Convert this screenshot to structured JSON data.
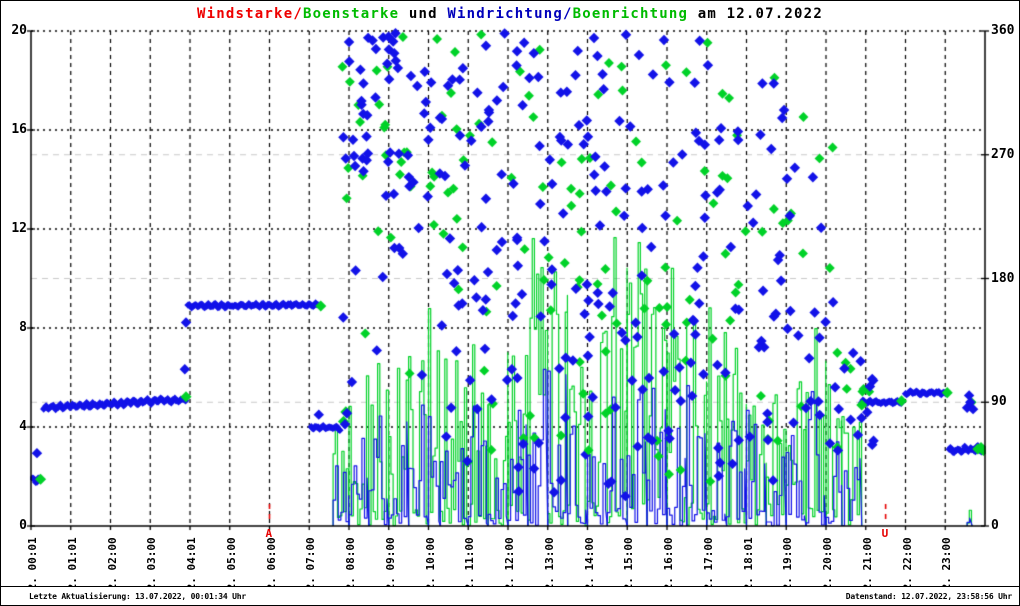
{
  "title": {
    "parts": [
      {
        "text": "Windstarke/",
        "color": "#ee0000"
      },
      {
        "text": "Boenstarke",
        "color": "#00bb00"
      },
      {
        "text": " und ",
        "color": "#000000"
      },
      {
        "text": "Windrichtung/",
        "color": "#0000bb"
      },
      {
        "text": "Boenrichtung",
        "color": "#00bb00"
      },
      {
        "text": " am 12.07.2022",
        "color": "#000000"
      }
    ]
  },
  "footer": {
    "left": "Letzte Aktualisierung: 13.07.2022, 00:01:34 Uhr",
    "right": "Datenstand: 12.07.2022, 23:58:56 Uhr"
  },
  "colors": {
    "wind_blue": "#1212e8",
    "gust_green": "#00d228",
    "grid_major": "#000000",
    "grid_right": "#c9c9c9",
    "marker_red": "#e60000",
    "axis": "#000000"
  },
  "chart_data": {
    "type": "line+scatter",
    "title": "Windstarke/Boenstarke und Windrichtung/Boenrichtung am 12.07.2022",
    "x_axis": {
      "range_hours": [
        0,
        24
      ],
      "tick_labels": [
        "12. 00:01",
        "12. 01:01",
        "12. 02:00",
        "12. 03:00",
        "12. 04:01",
        "12. 05:00",
        "12. 06:00",
        "12. 07:00",
        "12. 08:00",
        "12. 09:00",
        "12. 10:00",
        "12. 11:00",
        "12. 12:00",
        "12. 13:00",
        "12. 14:00",
        "12. 15:00",
        "12. 16:00",
        "12. 17:00",
        "12. 18:01",
        "12. 19:00",
        "12. 20:00",
        "12. 21:00",
        "12. 22:00",
        "12. 23:00"
      ],
      "gridlines": "dashed-vertical-per-hour"
    },
    "y_left": {
      "ticks": [
        0,
        4,
        8,
        12,
        16,
        20
      ],
      "range": [
        0,
        20
      ],
      "measures": "Windstarke / Boenstarke"
    },
    "y_right": {
      "ticks": [
        0,
        90,
        180,
        270,
        360
      ],
      "range": [
        0,
        360
      ],
      "measures": "Windrichtung / Boenrichtung (Grad)"
    },
    "series": [
      {
        "name": "Windstarke",
        "type": "step-line",
        "color": "#1212e8",
        "axis": "left"
      },
      {
        "name": "Boenstarke",
        "type": "step-line",
        "color": "#00d228",
        "axis": "left"
      },
      {
        "name": "Windrichtung",
        "type": "scatter-diamond",
        "color": "#1212e8",
        "axis": "right"
      },
      {
        "name": "Boenrichtung",
        "type": "scatter-diamond",
        "color": "#00d228",
        "axis": "right"
      }
    ],
    "wind_direction_segments": [
      {
        "t0": 0.03,
        "t1": 0.28,
        "deg0": 33,
        "deg1": 34,
        "jitter": 2.0
      },
      {
        "t0": 0.32,
        "t1": 3.9,
        "deg0": 86,
        "deg1": 92,
        "jitter": 2.0
      },
      {
        "t0": 3.95,
        "t1": 7.28,
        "deg0": 160,
        "deg1": 161,
        "jitter": 1.5
      },
      {
        "t0": 7.05,
        "t1": 7.8,
        "deg0": 72,
        "deg1": 71,
        "jitter": 1.5
      },
      {
        "t0": 20.9,
        "t1": 21.9,
        "deg0": 90,
        "deg1": 90,
        "jitter": 1.5
      },
      {
        "t0": 22.0,
        "t1": 23.05,
        "deg0": 97,
        "deg1": 97,
        "jitter": 1.5
      },
      {
        "t0": 23.1,
        "t1": 23.98,
        "deg0": 55,
        "deg1": 56,
        "jitter": 2.5
      }
    ],
    "wind_direction_points": [
      [
        0.15,
        53
      ],
      [
        3.87,
        114
      ],
      [
        3.9,
        148
      ],
      [
        7.24,
        81
      ],
      [
        7.9,
        74
      ],
      [
        7.95,
        82
      ],
      [
        20.1,
        60
      ],
      [
        20.3,
        55
      ],
      [
        23.55,
        86
      ],
      [
        23.6,
        95
      ],
      [
        23.63,
        90
      ],
      [
        23.7,
        85
      ]
    ],
    "gust_direction_points": [
      [
        0.24,
        34
      ],
      [
        3.9,
        94
      ],
      [
        7.29,
        160
      ],
      [
        7.86,
        76
      ],
      [
        7.92,
        83
      ],
      [
        20.9,
        88
      ],
      [
        21.9,
        91
      ],
      [
        23.05,
        97
      ],
      [
        23.65,
        90
      ],
      [
        23.82,
        56
      ],
      [
        23.9,
        57
      ],
      [
        23.96,
        55
      ]
    ],
    "direction_scatter_windows": [
      [
        7.8,
        9.0,
        250,
        360,
        26,
        12
      ],
      [
        7.8,
        9.0,
        100,
        250,
        6,
        3
      ],
      [
        9.0,
        10.5,
        230,
        360,
        28,
        12
      ],
      [
        9.0,
        10.5,
        60,
        230,
        8,
        4
      ],
      [
        10.5,
        12.0,
        150,
        360,
        30,
        14
      ],
      [
        10.5,
        12.0,
        40,
        150,
        8,
        4
      ],
      [
        12.0,
        14.0,
        110,
        360,
        40,
        20
      ],
      [
        12.0,
        14.0,
        20,
        110,
        10,
        5
      ],
      [
        14.0,
        16.0,
        100,
        360,
        40,
        20
      ],
      [
        14.0,
        16.0,
        20,
        100,
        10,
        5
      ],
      [
        16.0,
        17.5,
        100,
        360,
        28,
        14
      ],
      [
        16.0,
        17.5,
        30,
        100,
        8,
        3
      ],
      [
        17.5,
        19.0,
        80,
        330,
        24,
        12
      ],
      [
        17.5,
        19.0,
        30,
        80,
        6,
        3
      ],
      [
        19.0,
        20.2,
        60,
        300,
        18,
        8
      ],
      [
        20.2,
        21.2,
        55,
        130,
        14,
        8
      ]
    ],
    "speed_envelope_windows": [
      [
        7.6,
        8.0,
        5.5,
        2.5
      ],
      [
        8.0,
        8.5,
        7.3,
        4.5
      ],
      [
        8.5,
        9.0,
        7.5,
        5.0
      ],
      [
        9.0,
        9.5,
        7.0,
        5.0
      ],
      [
        9.5,
        10.0,
        7.4,
        5.2
      ],
      [
        10.0,
        10.3,
        9.6,
        5.0
      ],
      [
        10.3,
        11.0,
        7.5,
        5.0
      ],
      [
        11.0,
        11.5,
        7.4,
        5.5
      ],
      [
        11.5,
        12.0,
        7.6,
        5.5
      ],
      [
        12.0,
        12.5,
        8.0,
        5.5
      ],
      [
        12.5,
        13.0,
        11.7,
        6.5
      ],
      [
        13.0,
        13.5,
        11.5,
        7.0
      ],
      [
        13.5,
        14.0,
        10.5,
        7.0
      ],
      [
        14.0,
        14.5,
        9.5,
        6.0
      ],
      [
        14.5,
        15.0,
        11.9,
        6.0
      ],
      [
        15.0,
        15.5,
        11.8,
        6.5
      ],
      [
        15.5,
        16.0,
        10.0,
        6.0
      ],
      [
        16.0,
        16.5,
        11.5,
        7.0
      ],
      [
        16.5,
        17.0,
        9.0,
        6.0
      ],
      [
        17.0,
        17.5,
        9.5,
        5.5
      ],
      [
        17.5,
        18.0,
        7.5,
        5.0
      ],
      [
        18.0,
        18.5,
        7.6,
        5.2
      ],
      [
        18.5,
        19.0,
        7.4,
        5.0
      ],
      [
        19.0,
        19.5,
        7.0,
        5.0
      ],
      [
        19.5,
        20.0,
        8.5,
        5.5
      ],
      [
        20.0,
        20.4,
        6.0,
        4.0
      ],
      [
        20.4,
        20.9,
        4.5,
        3.0
      ],
      [
        23.55,
        23.68,
        2.6,
        1.3
      ]
    ],
    "sun_markers": [
      {
        "label": "A",
        "hour": 6.0
      },
      {
        "label": "U",
        "hour": 21.5
      }
    ],
    "render": {
      "seed": 42,
      "gust_step_h": 0.055,
      "wind_step_h": 0.065
    }
  }
}
